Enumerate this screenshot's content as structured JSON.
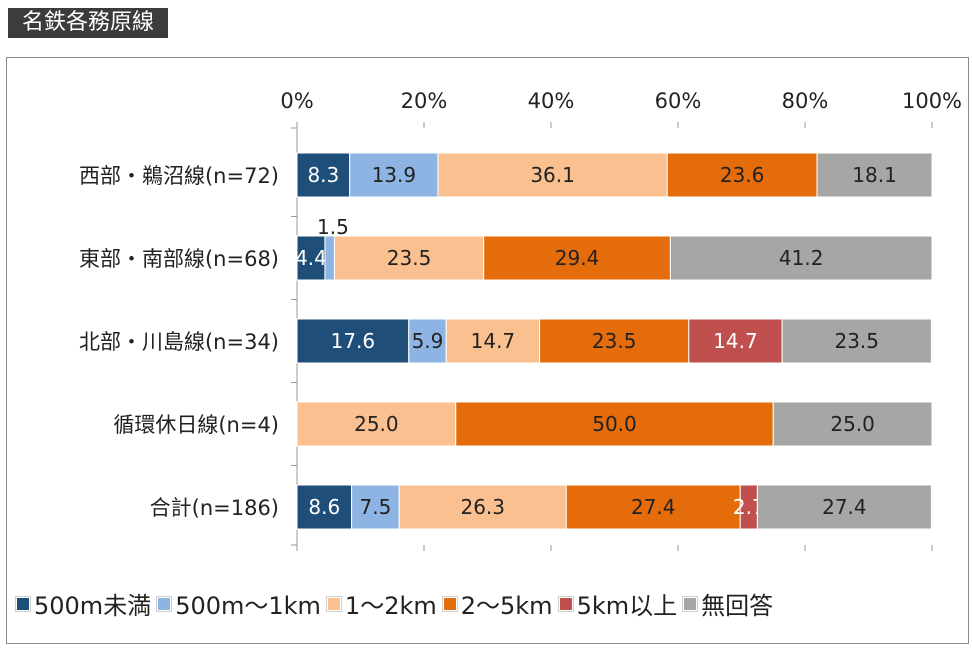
{
  "header": {
    "title": "名鉄各務原線"
  },
  "chart_data": {
    "type": "bar",
    "orientation": "horizontal",
    "stacked": "percent",
    "title": "名鉄各務原線",
    "categories": [
      "西部・鵜沼線(n=72)",
      "東部・南部線(n=68)",
      "北部・川島線(n=34)",
      "循環休日線(n=4)",
      "合計(n=186)"
    ],
    "x_ticks": [
      "0%",
      "20%",
      "40%",
      "60%",
      "80%",
      "100%"
    ],
    "xlim": [
      0,
      100
    ],
    "legend_position": "bottom",
    "series": [
      {
        "name": "500m未満",
        "color": "#1f4e79",
        "values": [
          8.3,
          4.4,
          17.6,
          0,
          8.6
        ],
        "labels": [
          "8.3",
          "4.4",
          "17.6",
          "",
          "8.6"
        ]
      },
      {
        "name": "500m～1km",
        "color": "#8eb4e3",
        "values": [
          13.9,
          1.5,
          5.9,
          0,
          7.5
        ],
        "labels": [
          "13.9",
          "1.5",
          "5.9",
          "",
          "7.5"
        ]
      },
      {
        "name": "1～2km",
        "color": "#fac090",
        "values": [
          36.1,
          23.5,
          14.7,
          25.0,
          26.3
        ],
        "labels": [
          "36.1",
          "23.5",
          "14.7",
          "25.0",
          "26.3"
        ]
      },
      {
        "name": "2～5km",
        "color": "#e46c0a",
        "values": [
          23.6,
          29.4,
          23.5,
          50.0,
          27.4
        ],
        "labels": [
          "23.6",
          "29.4",
          "23.5",
          "50.0",
          "27.4"
        ]
      },
      {
        "name": "5km以上",
        "color": "#c0504d",
        "values": [
          0,
          0,
          14.7,
          0,
          2.7
        ],
        "labels": [
          "",
          "",
          "14.7",
          "",
          "2.7"
        ]
      },
      {
        "name": "無回答",
        "color": "#a6a6a6",
        "values": [
          18.1,
          41.2,
          23.5,
          25.0,
          27.4
        ],
        "labels": [
          "18.1",
          "41.2",
          "23.5",
          "25.0",
          "27.4"
        ]
      }
    ]
  }
}
